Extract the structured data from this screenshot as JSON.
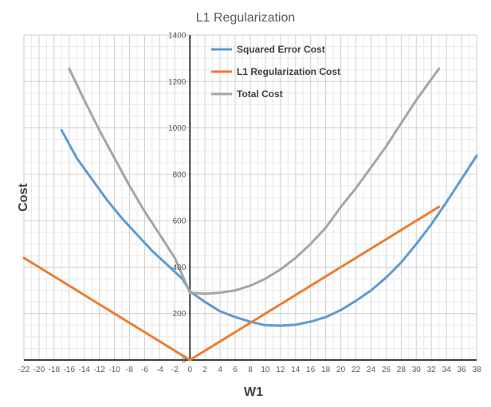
{
  "chart_data": {
    "type": "line",
    "title": "L1 Regularization",
    "xlabel": "W1",
    "ylabel": "Cost",
    "xlim": [
      -22,
      38
    ],
    "ylim": [
      0,
      1400
    ],
    "x_ticks": [
      -22,
      -20,
      -18,
      -16,
      -14,
      -12,
      -10,
      -8,
      -6,
      -4,
      -2,
      0,
      2,
      4,
      6,
      8,
      10,
      12,
      14,
      16,
      18,
      20,
      22,
      24,
      26,
      28,
      30,
      32,
      34,
      36,
      38
    ],
    "y_ticks": [
      0,
      200,
      400,
      600,
      800,
      1000,
      1200,
      1400
    ],
    "grid": true,
    "legend_position": "top-right",
    "series": [
      {
        "name": "Squared Error Cost",
        "color": "#5b9bd5",
        "x": [
          -17,
          -15,
          -13,
          -11,
          -9,
          -7,
          -5,
          -3,
          -1,
          0,
          2,
          4,
          6,
          8,
          10,
          12,
          14,
          16,
          18,
          20,
          22,
          24,
          26,
          28,
          30,
          32,
          34,
          36,
          38
        ],
        "y": [
          990,
          870,
          780,
          690,
          610,
          540,
          470,
          410,
          350,
          295,
          250,
          210,
          185,
          165,
          150,
          148,
          152,
          165,
          185,
          215,
          255,
          300,
          355,
          420,
          500,
          585,
          680,
          780,
          880
        ]
      },
      {
        "name": "L1 Regularization Cost",
        "color": "#ed7d31",
        "x": [
          -22,
          -20,
          -18,
          -16,
          -14,
          -12,
          -10,
          -8,
          -6,
          -4,
          -2,
          0,
          2,
          4,
          6,
          8,
          10,
          12,
          14,
          16,
          18,
          20,
          22,
          24,
          26,
          28,
          30,
          32,
          33
        ],
        "y": [
          440,
          400,
          360,
          320,
          280,
          240,
          200,
          160,
          120,
          80,
          40,
          0,
          40,
          80,
          120,
          160,
          200,
          240,
          280,
          320,
          360,
          400,
          440,
          480,
          520,
          560,
          600,
          640,
          660
        ]
      },
      {
        "name": "Total Cost",
        "color": "#a5a5a5",
        "x": [
          -16,
          -14,
          -12,
          -10,
          -8,
          -6,
          -4,
          -2,
          0,
          2,
          4,
          6,
          8,
          10,
          12,
          14,
          16,
          18,
          20,
          22,
          24,
          26,
          28,
          30,
          32,
          33
        ],
        "y": [
          1255,
          1120,
          990,
          870,
          750,
          640,
          540,
          440,
          290,
          285,
          290,
          300,
          320,
          350,
          390,
          440,
          500,
          570,
          660,
          740,
          830,
          920,
          1020,
          1120,
          1210,
          1255
        ]
      }
    ]
  }
}
